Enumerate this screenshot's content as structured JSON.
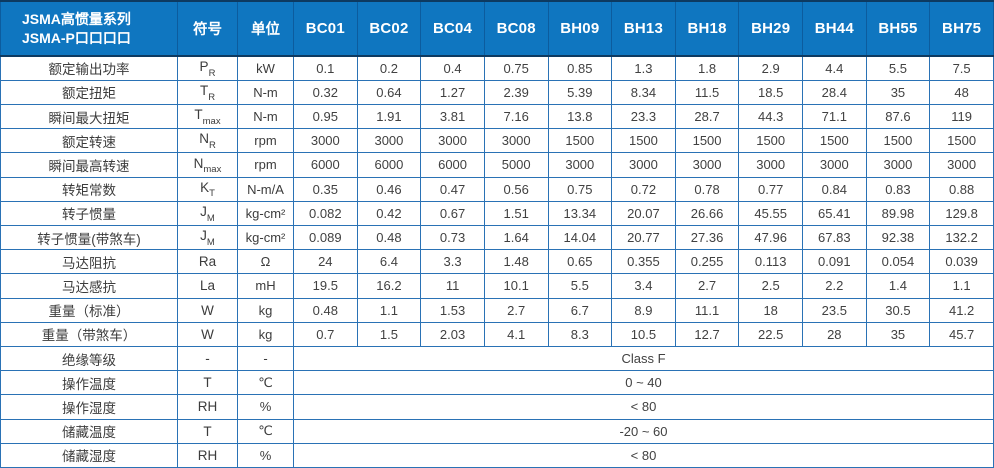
{
  "table": {
    "title_line1": "JSMA高惯量系列",
    "title_line2": "JSMA-P口口口口",
    "col_symbol": "符号",
    "col_unit": "单位",
    "models": [
      "BC01",
      "BC02",
      "BC04",
      "BC08",
      "BH09",
      "BH13",
      "BH18",
      "BH29",
      "BH44",
      "BH55",
      "BH75"
    ],
    "rows": [
      {
        "label": "额定输出功率",
        "sym": "P",
        "sub": "R",
        "unit": "kW",
        "values": [
          "0.1",
          "0.2",
          "0.4",
          "0.75",
          "0.85",
          "1.3",
          "1.8",
          "2.9",
          "4.4",
          "5.5",
          "7.5"
        ]
      },
      {
        "label": "额定扭矩",
        "sym": "T",
        "sub": "R",
        "unit": "N-m",
        "values": [
          "0.32",
          "0.64",
          "1.27",
          "2.39",
          "5.39",
          "8.34",
          "11.5",
          "18.5",
          "28.4",
          "35",
          "48"
        ]
      },
      {
        "label": "瞬间最大扭矩",
        "sym": "T",
        "sub": "max",
        "unit": "N-m",
        "values": [
          "0.95",
          "1.91",
          "3.81",
          "7.16",
          "13.8",
          "23.3",
          "28.7",
          "44.3",
          "71.1",
          "87.6",
          "119"
        ]
      },
      {
        "label": "额定转速",
        "sym": "N",
        "sub": "R",
        "unit": "rpm",
        "values": [
          "3000",
          "3000",
          "3000",
          "3000",
          "1500",
          "1500",
          "1500",
          "1500",
          "1500",
          "1500",
          "1500"
        ]
      },
      {
        "label": "瞬间最高转速",
        "sym": "N",
        "sub": "max",
        "unit": "rpm",
        "values": [
          "6000",
          "6000",
          "6000",
          "5000",
          "3000",
          "3000",
          "3000",
          "3000",
          "3000",
          "3000",
          "3000"
        ]
      },
      {
        "label": "转矩常数",
        "sym": "K",
        "sub": "T",
        "unit": "N-m/A",
        "values": [
          "0.35",
          "0.46",
          "0.47",
          "0.56",
          "0.75",
          "0.72",
          "0.78",
          "0.77",
          "0.84",
          "0.83",
          "0.88"
        ]
      },
      {
        "label": "转子惯量",
        "sym": "J",
        "sub": "M",
        "unit": "kg-cm²",
        "values": [
          "0.082",
          "0.42",
          "0.67",
          "1.51",
          "13.34",
          "20.07",
          "26.66",
          "45.55",
          "65.41",
          "89.98",
          "129.8"
        ]
      },
      {
        "label": "转子惯量(带煞车)",
        "sym": "J",
        "sub": "M",
        "unit": "kg-cm²",
        "values": [
          "0.089",
          "0.48",
          "0.73",
          "1.64",
          "14.04",
          "20.77",
          "27.36",
          "47.96",
          "67.83",
          "92.38",
          "132.2"
        ]
      },
      {
        "label": "马达阻抗",
        "sym": "Ra",
        "sub": "",
        "unit": "Ω",
        "values": [
          "24",
          "6.4",
          "3.3",
          "1.48",
          "0.65",
          "0.355",
          "0.255",
          "0.113",
          "0.091",
          "0.054",
          "0.039"
        ]
      },
      {
        "label": "马达感抗",
        "sym": "La",
        "sub": "",
        "unit": "mH",
        "values": [
          "19.5",
          "16.2",
          "11",
          "10.1",
          "5.5",
          "3.4",
          "2.7",
          "2.5",
          "2.2",
          "1.4",
          "1.1"
        ]
      },
      {
        "label": "重量（标准）",
        "sym": "W",
        "sub": "",
        "unit": "kg",
        "values": [
          "0.48",
          "1.1",
          "1.53",
          "2.7",
          "6.7",
          "8.9",
          "11.1",
          "18",
          "23.5",
          "30.5",
          "41.2"
        ]
      },
      {
        "label": "重量（带煞车）",
        "sym": "W",
        "sub": "",
        "unit": "kg",
        "values": [
          "0.7",
          "1.5",
          "2.03",
          "4.1",
          "8.3",
          "10.5",
          "12.7",
          "22.5",
          "28",
          "35",
          "45.7"
        ]
      },
      {
        "label": "绝缘等级",
        "sym": "-",
        "sub": "",
        "unit": "-",
        "merged": "Class F"
      },
      {
        "label": "操作温度",
        "sym": "T",
        "sub": "",
        "unit": "℃",
        "merged": "0 ~ 40"
      },
      {
        "label": "操作湿度",
        "sym": "RH",
        "sub": "",
        "unit": "%",
        "merged": "< 80"
      },
      {
        "label": "储藏温度",
        "sym": "T",
        "sub": "",
        "unit": "℃",
        "merged": "-20 ~ 60"
      },
      {
        "label": "储藏湿度",
        "sym": "RH",
        "sub": "",
        "unit": "%",
        "merged": "< 80"
      }
    ]
  },
  "colors": {
    "header_bg": "#0f76c0",
    "header_separator": "#0c5c9e",
    "header_accent_line": "#0d3a61",
    "grid_border": "#2a72b5",
    "label_text": "#3c3c3c",
    "value_text": "#414141"
  }
}
